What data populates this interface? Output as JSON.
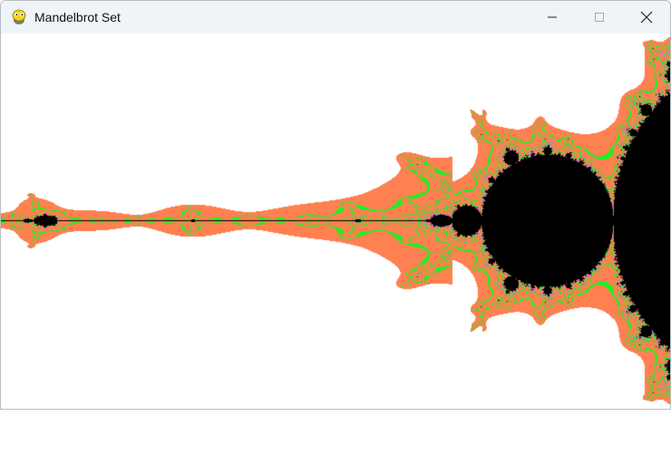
{
  "window": {
    "title": "Mandelbrot Set",
    "app_icon": "pygame-snake-icon",
    "controls": [
      "minimize-icon",
      "maximize-icon",
      "close-icon"
    ]
  },
  "colors": {
    "inside": "#000000",
    "escape_fast": "#ffffff",
    "band_main": "#ff8050",
    "band_green": "#22ee22",
    "band_purple": "#bb66ee"
  }
}
